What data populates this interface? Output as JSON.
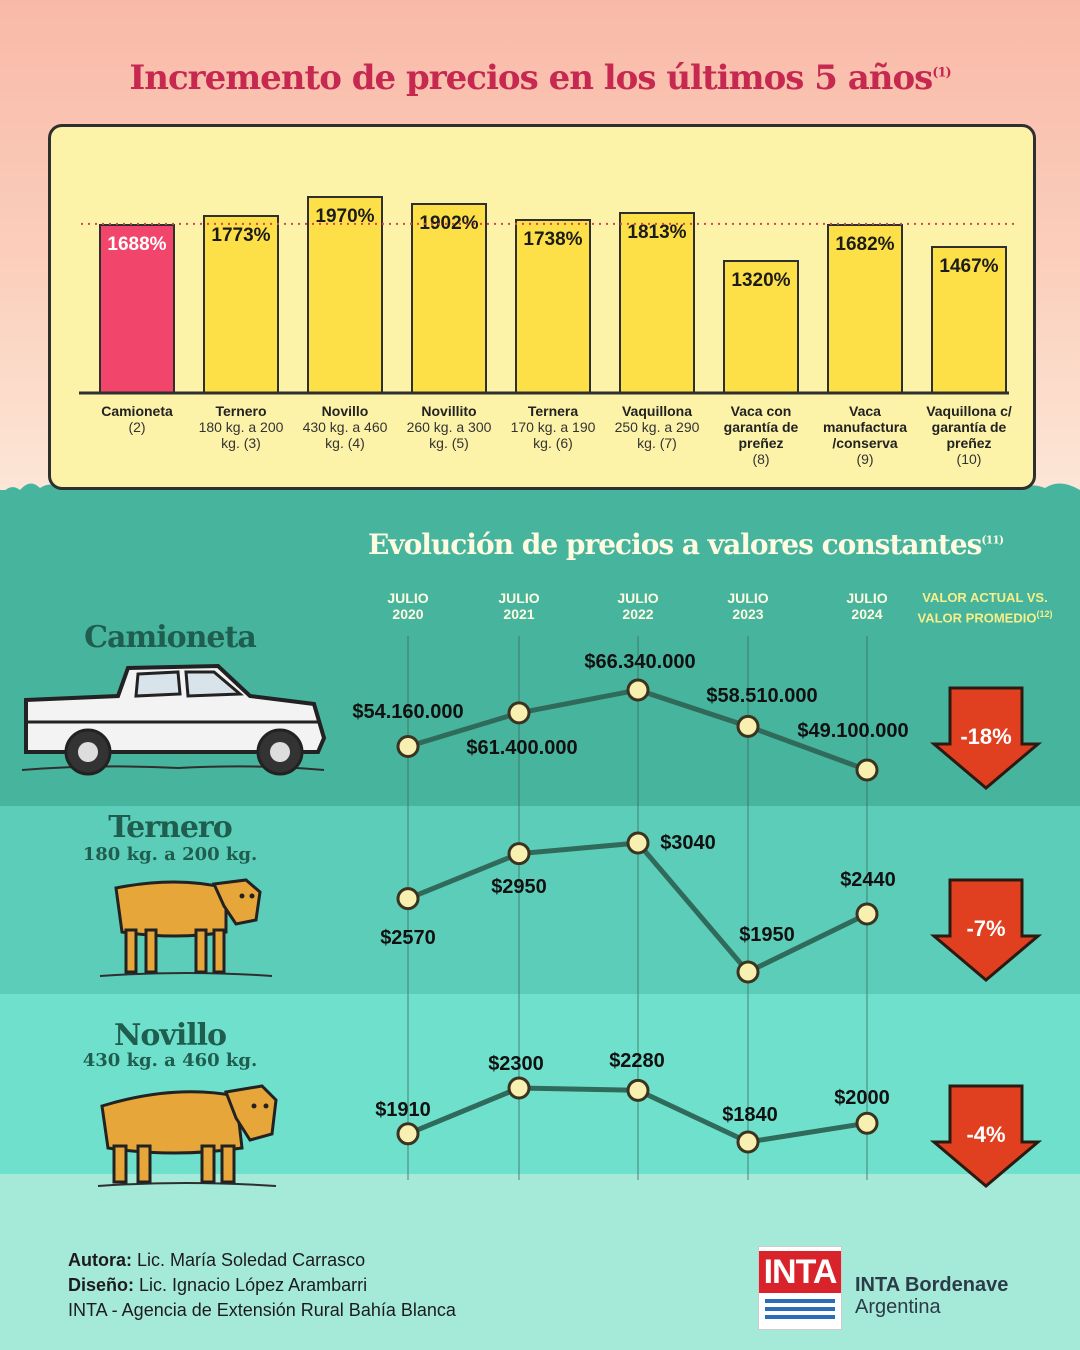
{
  "header": {
    "title": "Incremento de precios en los últimos 5 años",
    "title_note": "(1)"
  },
  "colors": {
    "highlight_bar": "#f2456b",
    "bar": "#fde047",
    "title_red": "#c6284f",
    "line": "#2f6a5b",
    "marker": "#f7f0b0",
    "arrow": "#e0401f"
  },
  "chart_data": [
    {
      "type": "bar",
      "title": "Incremento de precios en los últimos 5 años",
      "categories": [
        {
          "name": "Camioneta",
          "detail": "(2)"
        },
        {
          "name": "Ternero",
          "detail": "180 kg. a 200 kg. (3)"
        },
        {
          "name": "Novillo",
          "detail": "430 kg. a 460 kg. (4)"
        },
        {
          "name": "Novillito",
          "detail": "260 kg. a 300 kg. (5)"
        },
        {
          "name": "Ternera",
          "detail": "170 kg. a 190 kg. (6)"
        },
        {
          "name": "Vaquillona",
          "detail": "250 kg. a 290 kg. (7)"
        },
        {
          "name": "Vaca con garantía de preñez",
          "detail": "(8)"
        },
        {
          "name": "Vaca manufactura /conserva",
          "detail": "(9)"
        },
        {
          "name": "Vaquillona c/ garantía de preñez",
          "detail": "(10)"
        }
      ],
      "values": [
        1688,
        1773,
        1970,
        1902,
        1738,
        1813,
        1320,
        1682,
        1467
      ],
      "value_labels": [
        "1688%",
        "1773%",
        "1970%",
        "1902%",
        "1738%",
        "1813%",
        "1320%",
        "1682%",
        "1467%"
      ],
      "reference_line": 1688,
      "ylim": [
        0,
        2000
      ]
    },
    {
      "type": "line",
      "title": "Evolución de precios a valores constantes",
      "title_note": "(11)",
      "x": [
        "JULIO 2020",
        "JULIO 2021",
        "JULIO 2022",
        "JULIO 2023",
        "JULIO 2024"
      ],
      "comparison_header": "VALOR ACTUAL VS. VALOR PROMEDIO",
      "comparison_note": "(12)",
      "series": [
        {
          "name": "Camioneta",
          "subtitle": "",
          "values": [
            54160000,
            61400000,
            66340000,
            58510000,
            49100000
          ],
          "labels": [
            "$54.160.000",
            "$61.400.000",
            "$66.340.000",
            "$58.510.000",
            "$49.100.000"
          ],
          "change": "-18%"
        },
        {
          "name": "Ternero",
          "subtitle": "180 kg. a 200 kg.",
          "values": [
            2570,
            2950,
            3040,
            1950,
            2440
          ],
          "labels": [
            "$2570",
            "$2950",
            "$3040",
            "$1950",
            "$2440"
          ],
          "change": "-7%"
        },
        {
          "name": "Novillo",
          "subtitle": "430 kg. a 460 kg.",
          "values": [
            1910,
            2300,
            2280,
            1840,
            2000
          ],
          "labels": [
            "$1910",
            "$2300",
            "$2280",
            "$1840",
            "$2000"
          ],
          "change": "-4%"
        }
      ]
    }
  ],
  "footer": {
    "author_label": "Autora:",
    "author": "Lic. María Soledad Carrasco",
    "design_label": "Diseño:",
    "designer": "Lic. Ignacio López Arambarri",
    "agency": "INTA - Agencia de Extensión Rural Bahía Blanca",
    "logo_text": "INTA",
    "org_name": "INTA Bordenave",
    "org_country": "Argentina"
  }
}
